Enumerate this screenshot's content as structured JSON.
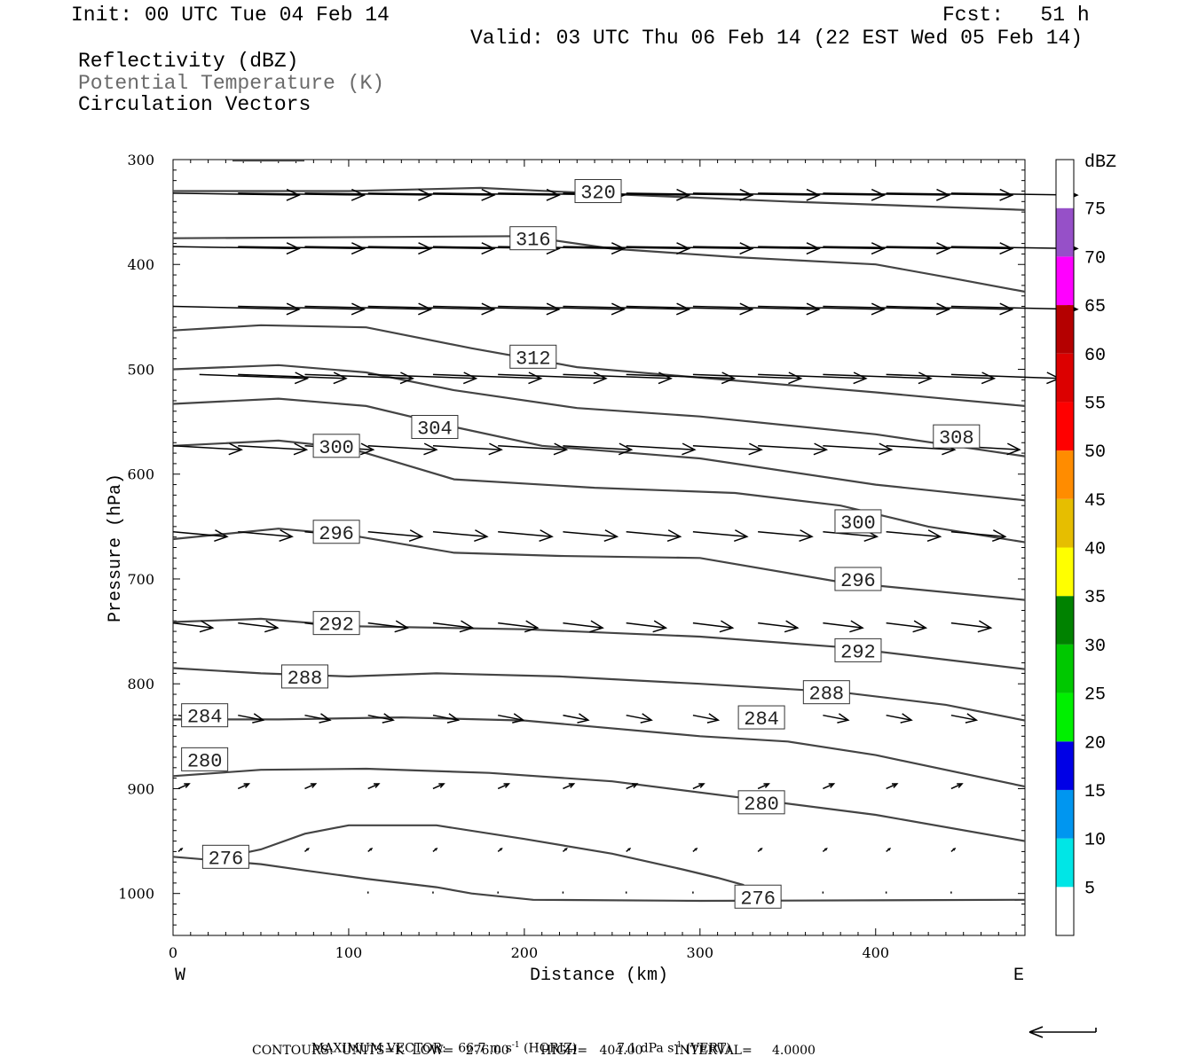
{
  "header": {
    "init": "Init: 00 UTC Tue 04 Feb 14",
    "fcst": "Fcst:   51 h",
    "valid": "Valid: 03 UTC Thu 06 Feb 14 (22 EST Wed 05 Feb 14)",
    "fields": [
      "Reflectivity (dBZ)",
      "Potential Temperature (K)",
      "Circulation Vectors"
    ]
  },
  "footer": {
    "max_vector_label": "MAXIMUM VECTOR:",
    "horiz_value": "66.7 m s",
    "horiz_exp": "-1",
    "horiz_tag": "(HORIZ)",
    "vert_value": "7.1 dPa s",
    "vert_exp": "-1",
    "vert_tag": "(VERT)",
    "contours_line": "CONTOURS:  UNITS=K  LOW=   276.00        HIGH=   404.00        INTERVAL=     4.0000"
  },
  "chart_data": {
    "type": "line",
    "xlabel": "Distance (km)",
    "ylabel": "Pressure (hPa)",
    "xlim": [
      0,
      485
    ],
    "ylim": [
      1040,
      300
    ],
    "x_ticks": [
      0,
      100,
      200,
      300,
      400
    ],
    "y_ticks": [
      300,
      400,
      500,
      600,
      700,
      800,
      900,
      1000
    ],
    "x_end_labels": {
      "left": "W",
      "right": "E"
    },
    "colorbar": {
      "unit": "dBZ",
      "labels": [
        5,
        10,
        15,
        20,
        25,
        30,
        35,
        40,
        45,
        50,
        55,
        60,
        65,
        70,
        75
      ],
      "bands": [
        {
          "from": 0,
          "to": 5,
          "color": "#ffffff"
        },
        {
          "from": 5,
          "to": 10,
          "color": "#00e6e6"
        },
        {
          "from": 10,
          "to": 15,
          "color": "#0096f0"
        },
        {
          "from": 15,
          "to": 20,
          "color": "#0000e6"
        },
        {
          "from": 20,
          "to": 25,
          "color": "#00f000"
        },
        {
          "from": 25,
          "to": 30,
          "color": "#00c800"
        },
        {
          "from": 30,
          "to": 35,
          "color": "#008200"
        },
        {
          "from": 35,
          "to": 40,
          "color": "#ffff00"
        },
        {
          "from": 40,
          "to": 45,
          "color": "#e6be00"
        },
        {
          "from": 45,
          "to": 50,
          "color": "#ff8c00"
        },
        {
          "from": 50,
          "to": 55,
          "color": "#ff0000"
        },
        {
          "from": 55,
          "to": 60,
          "color": "#dc0000"
        },
        {
          "from": 60,
          "to": 65,
          "color": "#b40000"
        },
        {
          "from": 65,
          "to": 70,
          "color": "#ff00ff"
        },
        {
          "from": 70,
          "to": 75,
          "color": "#9650c8"
        },
        {
          "from": 75,
          "to": 80,
          "color": "#ffffff"
        }
      ]
    },
    "theta_contours": [
      {
        "value": 276,
        "points": [
          [
            0,
            965
          ],
          [
            50,
            972
          ],
          [
            75,
            978
          ],
          [
            110,
            986
          ],
          [
            150,
            994
          ],
          [
            170,
            1000
          ],
          [
            205,
            1006
          ],
          [
            300,
            1007
          ],
          [
            485,
            1006
          ]
        ],
        "labels": [
          [
            30,
            965
          ],
          [
            333,
            1003
          ]
        ]
      },
      {
        "value": 276,
        "points": [
          [
            30,
            965
          ],
          [
            50,
            958
          ],
          [
            75,
            943
          ],
          [
            100,
            935
          ],
          [
            150,
            935
          ],
          [
            200,
            948
          ],
          [
            250,
            962
          ],
          [
            290,
            977
          ],
          [
            310,
            985
          ],
          [
            325,
            992
          ]
        ],
        "labels": []
      },
      {
        "value": 280,
        "points": [
          [
            0,
            888
          ],
          [
            50,
            882
          ],
          [
            110,
            881
          ],
          [
            180,
            885
          ],
          [
            250,
            893
          ],
          [
            330,
            910
          ],
          [
            400,
            925
          ],
          [
            485,
            950
          ]
        ],
        "labels": [
          [
            18,
            872
          ],
          [
            335,
            913
          ]
        ]
      },
      {
        "value": 284,
        "points": [
          [
            0,
            834
          ],
          [
            60,
            834
          ],
          [
            130,
            832
          ],
          [
            200,
            835
          ],
          [
            300,
            850
          ],
          [
            350,
            855
          ],
          [
            400,
            868
          ],
          [
            485,
            898
          ]
        ],
        "labels": [
          [
            18,
            830
          ],
          [
            335,
            832
          ]
        ]
      },
      {
        "value": 288,
        "points": [
          [
            0,
            785
          ],
          [
            50,
            790
          ],
          [
            100,
            793
          ],
          [
            150,
            790
          ],
          [
            220,
            793
          ],
          [
            300,
            800
          ],
          [
            380,
            808
          ],
          [
            440,
            820
          ],
          [
            485,
            835
          ]
        ],
        "labels": [
          [
            75,
            793
          ],
          [
            372,
            808
          ]
        ]
      },
      {
        "value": 292,
        "points": [
          [
            0,
            741
          ],
          [
            50,
            738
          ],
          [
            100,
            745
          ],
          [
            200,
            748
          ],
          [
            300,
            755
          ],
          [
            380,
            765
          ],
          [
            440,
            777
          ],
          [
            485,
            786
          ]
        ],
        "labels": [
          [
            93,
            742
          ],
          [
            390,
            768
          ]
        ]
      },
      {
        "value": 296,
        "points": [
          [
            0,
            662
          ],
          [
            60,
            652
          ],
          [
            100,
            658
          ],
          [
            160,
            675
          ],
          [
            220,
            678
          ],
          [
            300,
            680
          ],
          [
            380,
            703
          ],
          [
            485,
            720
          ]
        ],
        "labels": [
          [
            93,
            655
          ],
          [
            390,
            700
          ]
        ]
      },
      {
        "value": 300,
        "points": [
          [
            0,
            573
          ],
          [
            60,
            568
          ],
          [
            100,
            575
          ],
          [
            160,
            605
          ],
          [
            240,
            613
          ],
          [
            320,
            618
          ],
          [
            380,
            630
          ],
          [
            430,
            650
          ],
          [
            485,
            665
          ]
        ],
        "labels": [
          [
            93,
            573
          ],
          [
            390,
            645
          ]
        ]
      },
      {
        "value": 304,
        "points": [
          [
            0,
            533
          ],
          [
            60,
            528
          ],
          [
            110,
            535
          ],
          [
            160,
            555
          ],
          [
            210,
            573
          ],
          [
            300,
            585
          ],
          [
            400,
            610
          ],
          [
            485,
            625
          ]
        ],
        "labels": [
          [
            149,
            555
          ]
        ]
      },
      {
        "value": 308,
        "points": [
          [
            0,
            500
          ],
          [
            60,
            496
          ],
          [
            110,
            503
          ],
          [
            160,
            520
          ],
          [
            230,
            537
          ],
          [
            300,
            545
          ],
          [
            400,
            562
          ],
          [
            485,
            583
          ]
        ],
        "labels": [
          [
            446,
            564
          ]
        ]
      },
      {
        "value": 312,
        "points": [
          [
            0,
            463
          ],
          [
            50,
            458
          ],
          [
            110,
            460
          ],
          [
            170,
            480
          ],
          [
            230,
            498
          ],
          [
            300,
            508
          ],
          [
            400,
            522
          ],
          [
            485,
            535
          ]
        ],
        "labels": [
          [
            205,
            488
          ]
        ]
      },
      {
        "value": 316,
        "points": [
          [
            0,
            375
          ],
          [
            200,
            373
          ],
          [
            250,
            385
          ],
          [
            320,
            393
          ],
          [
            400,
            400
          ],
          [
            440,
            412
          ],
          [
            485,
            426
          ]
        ],
        "labels": [
          [
            205,
            375
          ]
        ]
      },
      {
        "value": 320,
        "points": [
          [
            0,
            330
          ],
          [
            100,
            330
          ],
          [
            175,
            327
          ],
          [
            250,
            333
          ],
          [
            350,
            340
          ],
          [
            485,
            348
          ]
        ],
        "labels": [
          [
            242,
            330
          ]
        ]
      }
    ],
    "vectors": [
      {
        "p": 332,
        "x_start": [
          0,
          37,
          75,
          111,
          148,
          185,
          222,
          258,
          296,
          333,
          370,
          406,
          443
        ],
        "dx": 35,
        "dp": 2
      },
      {
        "p": 383,
        "x_start": [
          0,
          37,
          75,
          111,
          148,
          185,
          222,
          258,
          296,
          333,
          370,
          406,
          443
        ],
        "dx": 35,
        "dp": 2
      },
      {
        "p": 440,
        "x_start": [
          0,
          37,
          75,
          111,
          148,
          185,
          222,
          258,
          296,
          333,
          370,
          406,
          443
        ],
        "dx": 35,
        "dp": 3
      },
      {
        "p": 505,
        "x_start": [
          15,
          37,
          75,
          111,
          148,
          185,
          222,
          258,
          296,
          333,
          370,
          406,
          443
        ],
        "dx": 30,
        "dp": 4
      },
      {
        "p": 573,
        "x_start": [
          0,
          37,
          75,
          111,
          148,
          185,
          222,
          258,
          296,
          333,
          370,
          406,
          443
        ],
        "dx": 19,
        "dp": 4
      },
      {
        "p": 655,
        "x_start": [
          0,
          37,
          75,
          111,
          148,
          185,
          222,
          258,
          296,
          333,
          370,
          406,
          443
        ],
        "dx": 15,
        "dp": 5
      },
      {
        "p": 742,
        "x_start": [
          0,
          37,
          75,
          111,
          148,
          185,
          222,
          258,
          296,
          333,
          370,
          406,
          443
        ],
        "dx": 11,
        "dp": 5
      },
      {
        "p": 830,
        "x_start": [
          3,
          37,
          75,
          111,
          148,
          185,
          222,
          258,
          296,
          333,
          370,
          406,
          443
        ],
        "dx": 7,
        "dp": 5
      },
      {
        "p": 900,
        "x_start": [
          3,
          37,
          75,
          111,
          148,
          185,
          222,
          258,
          296,
          333,
          370,
          406,
          443
        ],
        "dx": 3,
        "dp": -5
      },
      {
        "p": 960,
        "x_start": [
          3,
          37,
          75,
          111,
          148,
          185,
          222,
          258,
          296,
          333,
          370,
          406,
          443
        ],
        "dx": 1,
        "dp": -3
      },
      {
        "p": 1000,
        "x_start": [
          111,
          148,
          185,
          222,
          258,
          296,
          333,
          370,
          406,
          443
        ],
        "dx": 0,
        "dp": -2
      }
    ]
  }
}
